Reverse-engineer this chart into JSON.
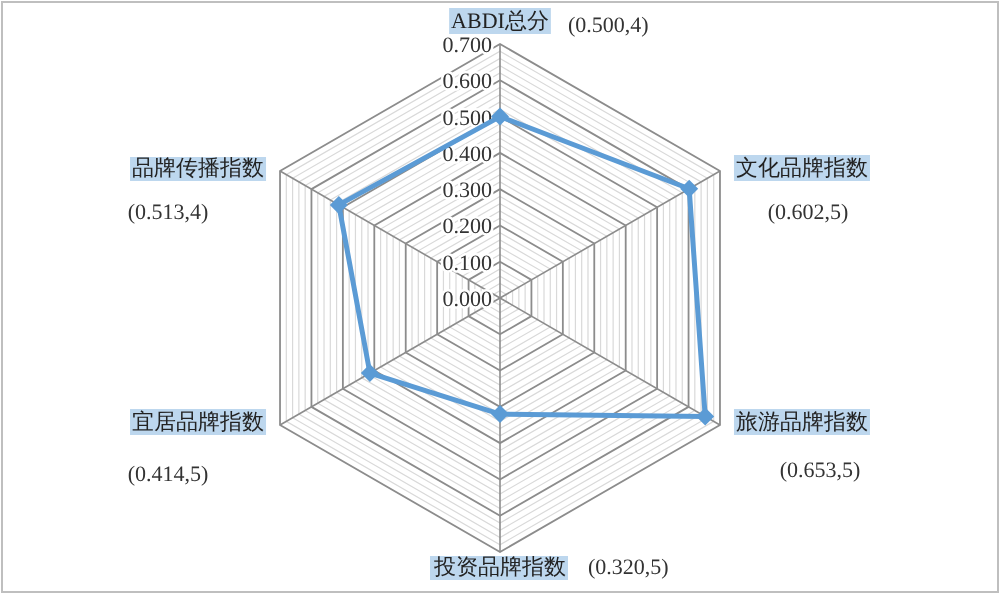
{
  "chart_data": {
    "type": "radar",
    "categories": [
      "ABDI总分",
      "文化品牌指数",
      "旅游品牌指数",
      "投资品牌指数",
      "宜居品牌指数",
      "品牌传播指数"
    ],
    "series": [
      {
        "color": "#5b9bd5",
        "values": [
          0.5,
          0.602,
          0.653,
          0.32,
          0.414,
          0.513
        ]
      }
    ],
    "annotations": [
      "(0.500,4)",
      "(0.602,5)",
      "(0.653,5)",
      "(0.320,5)",
      "(0.414,5)",
      "(0.513,4)"
    ],
    "ylim": [
      0,
      0.7
    ],
    "yticks": [
      {
        "value": 0,
        "label": "0.000"
      },
      {
        "value": 0.1,
        "label": "0.100"
      },
      {
        "value": 0.2,
        "label": "0.200"
      },
      {
        "value": 0.3,
        "label": "0.300"
      },
      {
        "value": 0.4,
        "label": "0.400"
      },
      {
        "value": 0.5,
        "label": "0.500"
      },
      {
        "value": 0.6,
        "label": "0.600"
      },
      {
        "value": 0.7,
        "label": "0.700"
      }
    ],
    "grid": true,
    "marker": "diamond"
  }
}
